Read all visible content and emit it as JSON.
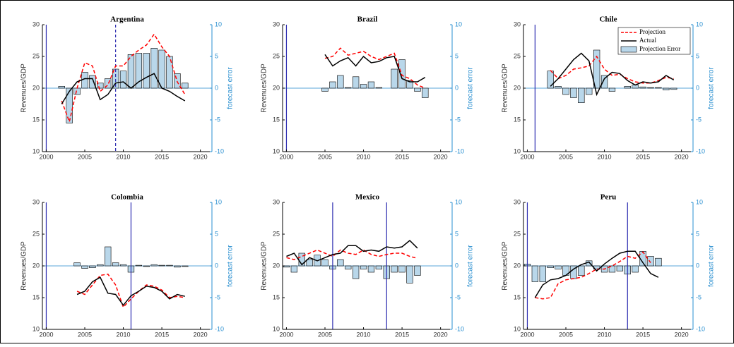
{
  "chart_data": [
    {
      "type": "line",
      "title": "Argentina",
      "y_label": "Revenues/GDP",
      "y2_label": "forecast error",
      "x": [
        2002,
        2003,
        2004,
        2005,
        2006,
        2007,
        2008,
        2009,
        2010,
        2011,
        2012,
        2013,
        2014,
        2015,
        2016,
        2017,
        2018
      ],
      "series": [
        {
          "color": "#ff0000",
          "style": "dashed",
          "values": [
            18,
            14.7,
            20,
            24,
            23.5,
            19.5,
            20.5,
            23.5,
            23.5,
            25,
            26,
            26.8,
            28.5,
            26.5,
            25,
            21,
            19
          ]
        },
        {
          "color": "#000000",
          "style": "solid",
          "values": [
            17.5,
            19.5,
            21,
            21.5,
            21.5,
            18.2,
            19,
            20.8,
            21,
            20,
            21,
            21.7,
            22.3,
            20,
            19.5,
            18.7,
            18
          ]
        },
        {
          "color": "#b9d7ea",
          "style": "bar",
          "axis": "y2",
          "values": [
            0.3,
            -5.5,
            -1,
            2.5,
            2,
            0.8,
            1.5,
            3,
            2.7,
            5.3,
            5.5,
            5.5,
            6.3,
            6,
            5,
            2.3,
            0.8
          ]
        }
      ],
      "vlines": [
        {
          "x": 2000,
          "style": "solid"
        },
        {
          "x": 2009,
          "style": "dashed"
        }
      ],
      "xlim": [
        1999.5,
        2021.5
      ],
      "xticks": [
        2000,
        2005,
        2010,
        2015,
        2020
      ],
      "ylim": [
        10,
        30
      ],
      "yticks": [
        10,
        15,
        20,
        25,
        30
      ],
      "y2lim": [
        -10,
        10
      ],
      "y2ticks": [
        -10,
        -5,
        0,
        5,
        10
      ]
    },
    {
      "type": "line",
      "title": "Brazil",
      "y_label": "Revenues/GDP",
      "y2_label": "forecast error",
      "x": [
        2005,
        2006,
        2007,
        2008,
        2009,
        2010,
        2011,
        2012,
        2013,
        2014,
        2015,
        2016,
        2017,
        2018
      ],
      "series": [
        {
          "color": "#ff0000",
          "style": "dashed",
          "values": [
            24.7,
            25,
            26.3,
            25.2,
            25.5,
            25.8,
            25,
            24.5,
            25,
            25.5,
            22,
            21.5,
            20.5,
            20
          ]
        },
        {
          "color": "#000000",
          "style": "solid",
          "values": [
            25.3,
            23.5,
            24.3,
            24.8,
            23.5,
            25,
            24,
            24.2,
            24.8,
            25,
            21.5,
            21,
            21,
            21.7
          ]
        },
        {
          "color": "#b9d7ea",
          "style": "bar",
          "axis": "y2",
          "values": [
            -0.5,
            1,
            2,
            0.1,
            1.8,
            0.6,
            1,
            0.1,
            0,
            3,
            4.5,
            1.2,
            -0.5,
            -1.5
          ]
        }
      ],
      "vlines": [
        {
          "x": 2000,
          "style": "solid"
        }
      ],
      "xlim": [
        1999.5,
        2021.5
      ],
      "xticks": [
        2000,
        2005,
        2010,
        2015,
        2020
      ],
      "ylim": [
        10,
        30
      ],
      "yticks": [
        10,
        15,
        20,
        25,
        30
      ],
      "y2lim": [
        -10,
        10
      ],
      "y2ticks": [
        -10,
        -5,
        0,
        5,
        10
      ]
    },
    {
      "type": "line",
      "title": "Chile",
      "y_label": "Revenues/GDP",
      "y2_label": "forecast error",
      "legend": "upper right",
      "x": [
        2003,
        2004,
        2005,
        2006,
        2007,
        2008,
        2009,
        2010,
        2011,
        2012,
        2013,
        2014,
        2015,
        2016,
        2017,
        2018,
        2019
      ],
      "series": [
        {
          "name": "Projection",
          "color": "#ff0000",
          "style": "dashed",
          "values": [
            22.8,
            21.5,
            22,
            23,
            23.2,
            23.5,
            25,
            23,
            22,
            22.2,
            21.5,
            21,
            20.8,
            20.8,
            21.2,
            21.7,
            21.5
          ]
        },
        {
          "name": "Actual",
          "color": "#000000",
          "style": "solid",
          "values": [
            20.3,
            21.5,
            23,
            24.5,
            25.5,
            24.3,
            19,
            21.5,
            22.5,
            22.3,
            21.2,
            20.5,
            21,
            20.8,
            21,
            22,
            21.3
          ]
        },
        {
          "name": "Projection Error",
          "color": "#b9d7ea",
          "style": "bar",
          "axis": "y2",
          "values": [
            2.7,
            0.3,
            -1,
            -1.5,
            -2.3,
            -1,
            6,
            2,
            -0.5,
            0,
            0.3,
            0.5,
            0.2,
            0.1,
            0.1,
            -0.3,
            -0.2
          ]
        }
      ],
      "vlines": [
        {
          "x": 2001,
          "style": "solid"
        }
      ],
      "xlim": [
        1999.5,
        2021.5
      ],
      "xticks": [
        2000,
        2005,
        2010,
        2015,
        2020
      ],
      "ylim": [
        10,
        30
      ],
      "yticks": [
        10,
        15,
        20,
        25,
        30
      ],
      "y2lim": [
        -10,
        10
      ],
      "y2ticks": [
        -10,
        -5,
        0,
        5,
        10
      ]
    },
    {
      "type": "line",
      "title": "Colombia",
      "y_label": "Revenues/GDP",
      "y2_label": "forecast error",
      "x": [
        2004,
        2005,
        2006,
        2007,
        2008,
        2009,
        2010,
        2011,
        2012,
        2013,
        2014,
        2015,
        2016,
        2017,
        2018
      ],
      "series": [
        {
          "color": "#ff0000",
          "style": "dashed",
          "values": [
            16,
            15.5,
            17,
            18.5,
            18.7,
            17,
            13.5,
            14.8,
            16,
            17,
            16.8,
            16.2,
            15,
            15.2,
            15
          ]
        },
        {
          "color": "#000000",
          "style": "solid",
          "values": [
            15.5,
            16,
            17.5,
            18.2,
            15.7,
            15.5,
            13.8,
            15.3,
            16,
            16.8,
            16.6,
            16,
            14.8,
            15.5,
            15.2
          ]
        },
        {
          "color": "#b9d7ea",
          "style": "bar",
          "axis": "y2",
          "values": [
            0.5,
            -0.4,
            -0.3,
            0.2,
            3,
            0.5,
            0.2,
            -1,
            0.1,
            -0.1,
            0.2,
            0.1,
            0.1,
            -0.2,
            -0.1
          ]
        }
      ],
      "vlines": [
        {
          "x": 2000,
          "style": "solid"
        },
        {
          "x": 2011,
          "style": "solid"
        }
      ],
      "xlim": [
        1999.5,
        2021.5
      ],
      "xticks": [
        2000,
        2005,
        2010,
        2015,
        2020
      ],
      "ylim": [
        10,
        30
      ],
      "yticks": [
        10,
        15,
        20,
        25,
        30
      ],
      "y2lim": [
        -10,
        10
      ],
      "y2ticks": [
        -10,
        -5,
        0,
        5,
        10
      ]
    },
    {
      "type": "line",
      "title": "Mexico",
      "y_label": "Revenues/GDP",
      "y2_label": "forecast error",
      "x": [
        2000,
        2001,
        2002,
        2003,
        2004,
        2005,
        2006,
        2007,
        2008,
        2009,
        2010,
        2011,
        2012,
        2013,
        2014,
        2015,
        2016,
        2017
      ],
      "series": [
        {
          "color": "#ff0000",
          "style": "dashed",
          "values": [
            21.3,
            21,
            21.5,
            22,
            22.5,
            22,
            21.5,
            22.5,
            22,
            21.8,
            22.5,
            21.8,
            21.5,
            21.8,
            22,
            22,
            21.5,
            21.2
          ]
        },
        {
          "color": "#000000",
          "style": "solid",
          "values": [
            21.5,
            22,
            20.2,
            21.3,
            20.8,
            21.3,
            21.8,
            22,
            23.2,
            23.2,
            22.3,
            22.5,
            22.3,
            23,
            22.8,
            23,
            24,
            22.8
          ]
        },
        {
          "color": "#b9d7ea",
          "style": "bar",
          "axis": "y2",
          "values": [
            -0.2,
            -1,
            2,
            1,
            1.7,
            1,
            -0.5,
            1,
            -0.5,
            -2,
            -0.5,
            -1,
            -0.5,
            -2,
            -1,
            -1,
            -2.7,
            -1.5
          ]
        }
      ],
      "vlines": [
        {
          "x": 2006,
          "style": "solid"
        },
        {
          "x": 2013,
          "style": "solid"
        }
      ],
      "xlim": [
        1999.5,
        2021.5
      ],
      "xticks": [
        2000,
        2005,
        2010,
        2015,
        2020
      ],
      "ylim": [
        10,
        30
      ],
      "yticks": [
        10,
        15,
        20,
        25,
        30
      ],
      "y2lim": [
        -10,
        10
      ],
      "y2ticks": [
        -10,
        -5,
        0,
        5,
        10
      ]
    },
    {
      "type": "line",
      "title": "Peru",
      "y_label": "Revenues/GDP",
      "y2_label": "forecast error",
      "x": [
        2000,
        2001,
        2002,
        2003,
        2004,
        2005,
        2006,
        2007,
        2008,
        2009,
        2010,
        2011,
        2012,
        2013,
        2014,
        2015,
        2016,
        2017
      ],
      "series": [
        {
          "color": "#ff0000",
          "style": "dashed",
          "values": [
            null,
            15,
            14.8,
            15,
            17.2,
            17.8,
            18,
            18.2,
            18.8,
            19.5,
            19.5,
            20,
            20.7,
            21.5,
            21.2,
            22.2,
            20.5,
            null
          ]
        },
        {
          "color": "#000000",
          "style": "solid",
          "values": [
            null,
            15,
            17,
            17.8,
            18,
            18.5,
            19.5,
            20.2,
            20.6,
            19.2,
            20.3,
            21.2,
            22,
            22.3,
            22.3,
            20.5,
            18.8,
            18.2
          ]
        },
        {
          "color": "#b9d7ea",
          "style": "bar",
          "axis": "y2",
          "values": [
            0.3,
            -2.5,
            -2.5,
            -0.3,
            -0.5,
            -1.5,
            -2,
            -1.5,
            0.8,
            -0.5,
            -1,
            -1,
            -0.8,
            -1.3,
            -1,
            2.3,
            1.5,
            1.2
          ]
        }
      ],
      "vlines": [
        {
          "x": 2000,
          "style": "solid"
        },
        {
          "x": 2013,
          "style": "solid"
        }
      ],
      "xlim": [
        1999.5,
        2021.5
      ],
      "xticks": [
        2000,
        2005,
        2010,
        2015,
        2020
      ],
      "ylim": [
        10,
        30
      ],
      "yticks": [
        10,
        15,
        20,
        25,
        30
      ],
      "y2lim": [
        -10,
        10
      ],
      "y2ticks": [
        -10,
        -5,
        0,
        5,
        10
      ]
    }
  ]
}
